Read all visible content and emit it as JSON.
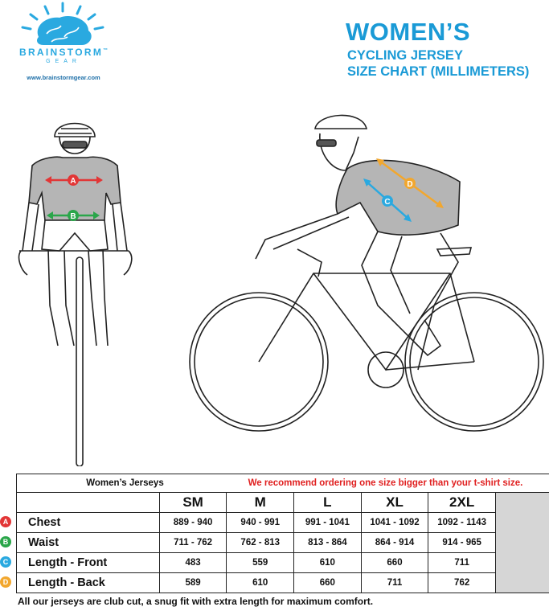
{
  "brand": {
    "name": "BRAINSTORM",
    "tm": "™",
    "sub": "GEAR",
    "url": "www.brainstormgear.com",
    "color": "#2aa9e0"
  },
  "header": {
    "title": "WOMEN’S",
    "subtitle_line1": "CYCLING JERSEY",
    "subtitle_line2": "SIZE CHART (MILLIMETERS)"
  },
  "diagram": {
    "labels": [
      {
        "letter": "A",
        "color": "#e23636"
      },
      {
        "letter": "B",
        "color": "#2aa64a"
      },
      {
        "letter": "C",
        "color": "#2aa9e0"
      },
      {
        "letter": "D",
        "color": "#f2a72e"
      }
    ]
  },
  "table": {
    "title": "Women’s Jerseys",
    "recommendation": "We recommend ordering one size bigger than your t-shirt size.",
    "sizes": [
      "SM",
      "M",
      "L",
      "XL",
      "2XL"
    ],
    "rows": [
      {
        "marker": "A",
        "label": "Chest",
        "values": [
          "889 - 940",
          "940 - 991",
          "991 - 1041",
          "1041 - 1092",
          "1092 - 1143"
        ]
      },
      {
        "marker": "B",
        "label": "Waist",
        "values": [
          "711 - 762",
          "762 - 813",
          "813 - 864",
          "864 - 914",
          "914 - 965"
        ]
      },
      {
        "marker": "C",
        "label": "Length - Front",
        "values": [
          "483",
          "559",
          "610",
          "660",
          "711"
        ]
      },
      {
        "marker": "D",
        "label": "Length - Back",
        "values": [
          "589",
          "610",
          "660",
          "711",
          "762"
        ]
      }
    ]
  },
  "footnote": "All our jerseys are club cut, a snug fit with extra length for maximum comfort."
}
